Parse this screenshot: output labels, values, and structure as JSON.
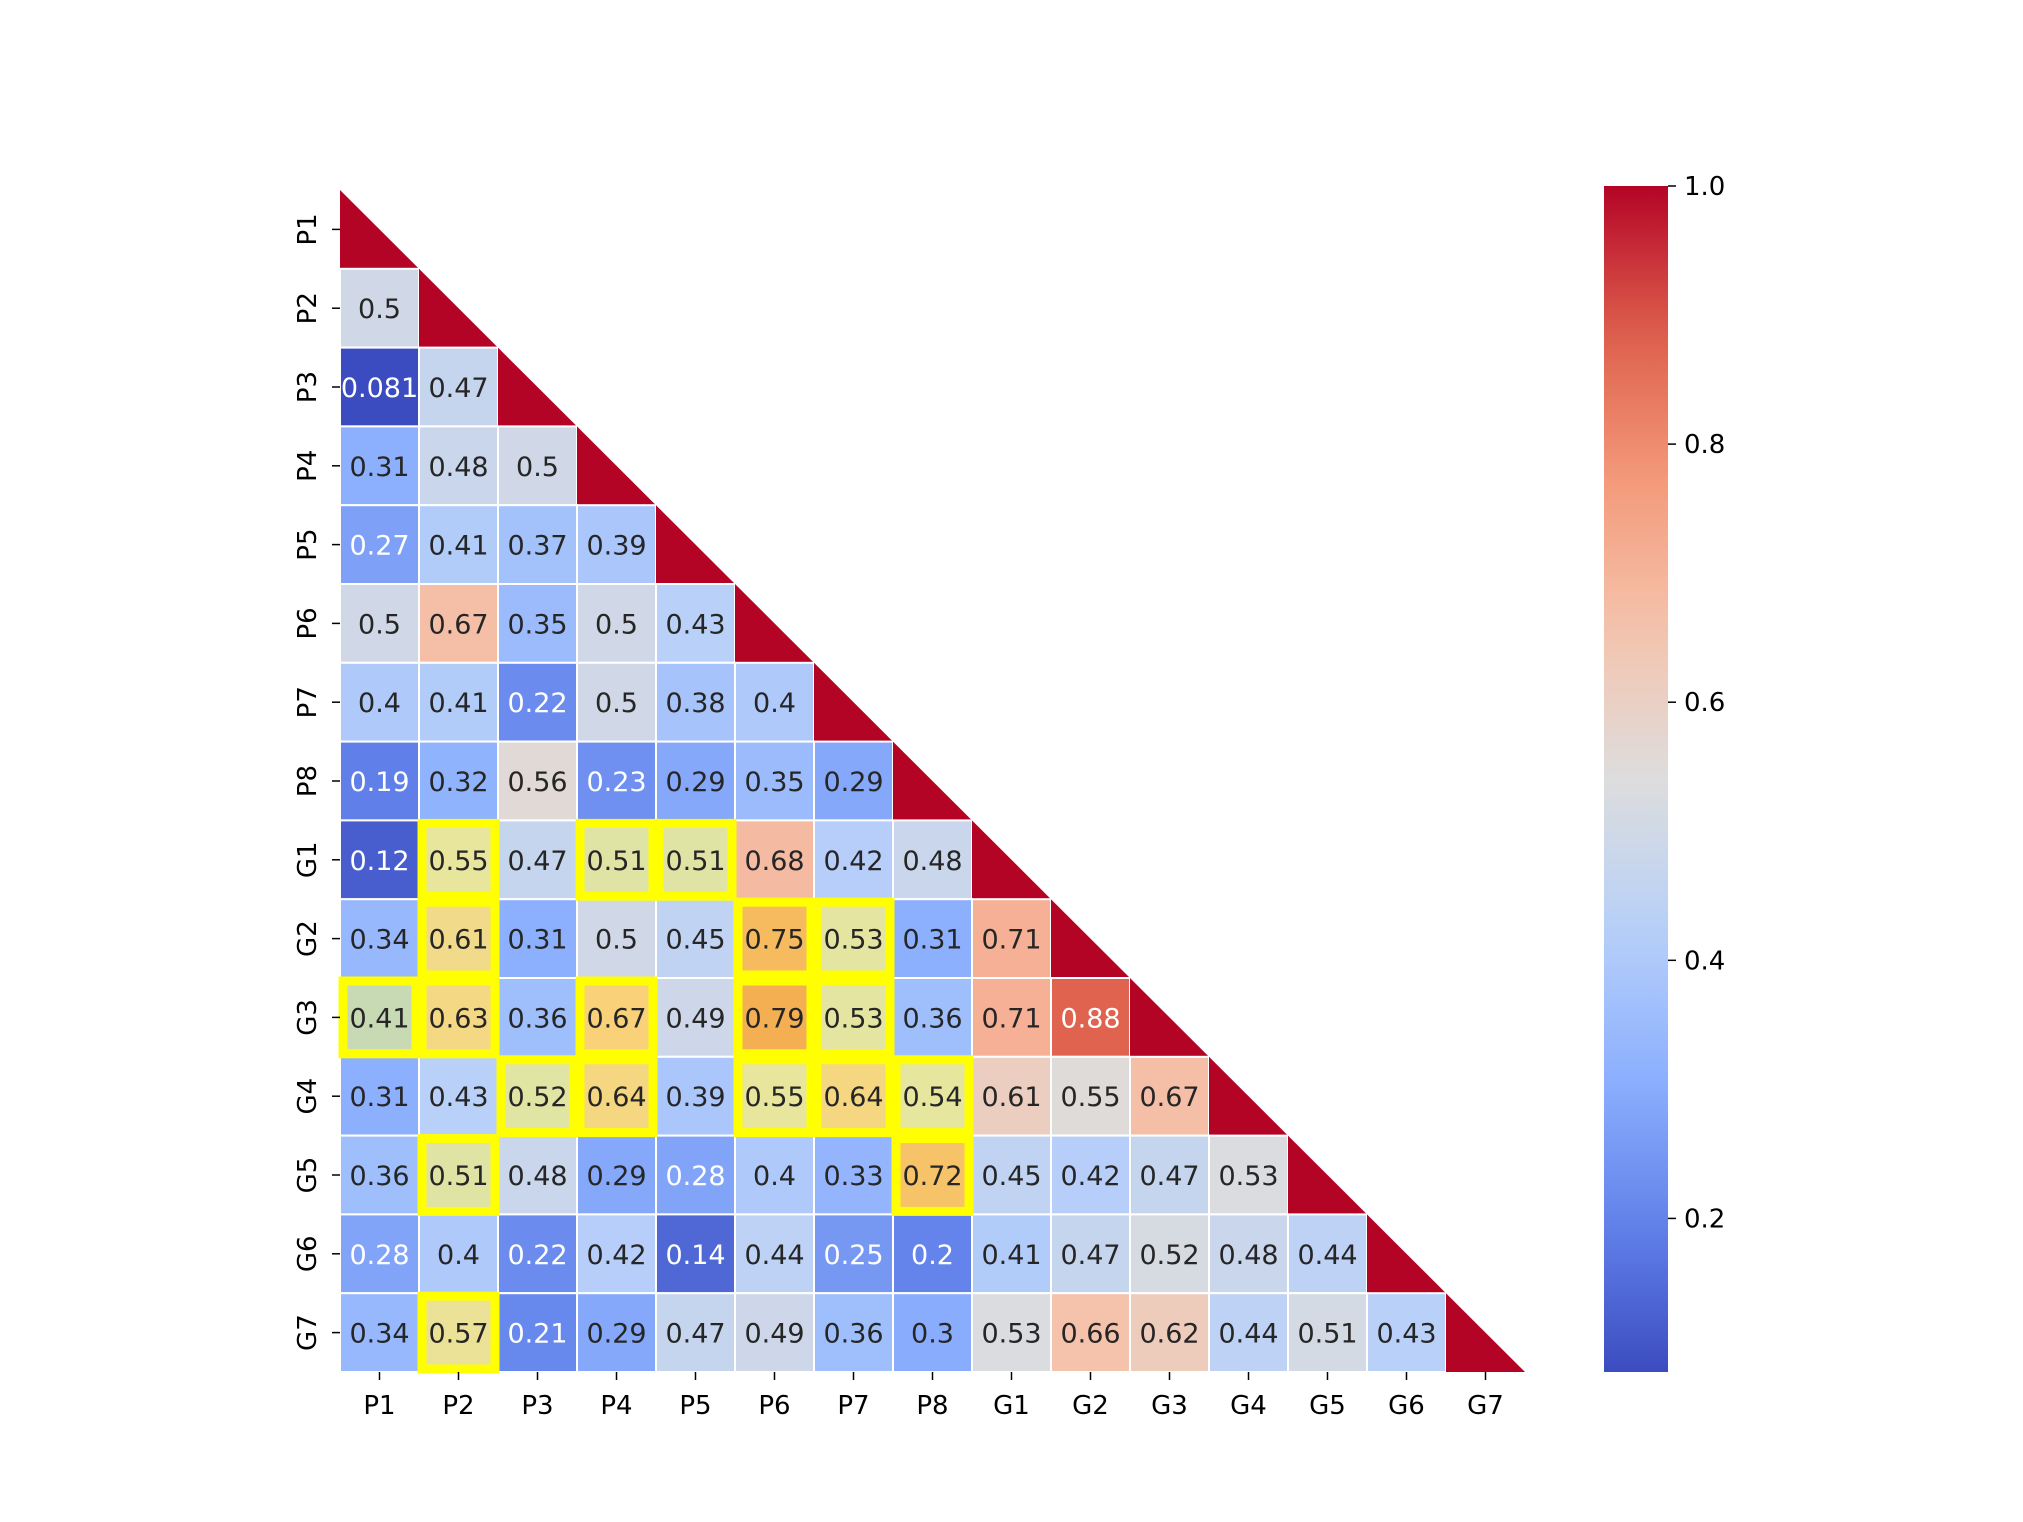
{
  "chart_data": {
    "type": "heatmap",
    "title": "",
    "xlabel": "",
    "ylabel": "",
    "labels": [
      "P1",
      "P2",
      "P3",
      "P4",
      "P5",
      "P6",
      "P7",
      "P8",
      "G1",
      "G2",
      "G3",
      "G4",
      "G5",
      "G6",
      "G7"
    ],
    "matrix_lower": [
      [],
      [
        0.5
      ],
      [
        0.081,
        0.47
      ],
      [
        0.31,
        0.48,
        0.5
      ],
      [
        0.27,
        0.41,
        0.37,
        0.39
      ],
      [
        0.5,
        0.67,
        0.35,
        0.5,
        0.43
      ],
      [
        0.4,
        0.41,
        0.22,
        0.5,
        0.38,
        0.4
      ],
      [
        0.19,
        0.32,
        0.56,
        0.23,
        0.29,
        0.35,
        0.29
      ],
      [
        0.12,
        0.55,
        0.47,
        0.51,
        0.51,
        0.68,
        0.42,
        0.48
      ],
      [
        0.34,
        0.61,
        0.31,
        0.5,
        0.45,
        0.75,
        0.53,
        0.31,
        0.71
      ],
      [
        0.41,
        0.63,
        0.36,
        0.67,
        0.49,
        0.79,
        0.53,
        0.36,
        0.71,
        0.88
      ],
      [
        0.31,
        0.43,
        0.52,
        0.64,
        0.39,
        0.55,
        0.64,
        0.54,
        0.61,
        0.55,
        0.67
      ],
      [
        0.36,
        0.51,
        0.48,
        0.29,
        0.28,
        0.4,
        0.33,
        0.72,
        0.45,
        0.42,
        0.47,
        0.53
      ],
      [
        0.28,
        0.4,
        0.22,
        0.42,
        0.14,
        0.44,
        0.25,
        0.2,
        0.41,
        0.47,
        0.52,
        0.48,
        0.44
      ],
      [
        0.34,
        0.57,
        0.21,
        0.29,
        0.47,
        0.49,
        0.36,
        0.3,
        0.53,
        0.66,
        0.62,
        0.44,
        0.51,
        0.43
      ]
    ],
    "diagonal_value": 1,
    "highlighted_cells": [
      [
        "G1",
        "P2"
      ],
      [
        "G1",
        "P4"
      ],
      [
        "G1",
        "P5"
      ],
      [
        "G2",
        "P2"
      ],
      [
        "G2",
        "P6"
      ],
      [
        "G2",
        "P7"
      ],
      [
        "G3",
        "P1"
      ],
      [
        "G3",
        "P2"
      ],
      [
        "G3",
        "P4"
      ],
      [
        "G3",
        "P6"
      ],
      [
        "G3",
        "P7"
      ],
      [
        "G4",
        "P3"
      ],
      [
        "G4",
        "P4"
      ],
      [
        "G4",
        "P6"
      ],
      [
        "G4",
        "P7"
      ],
      [
        "G4",
        "P8"
      ],
      [
        "G5",
        "P2"
      ],
      [
        "G5",
        "P8"
      ],
      [
        "G7",
        "P2"
      ]
    ],
    "colormap": "coolwarm",
    "colorbar": {
      "vmin": 0.081,
      "vmax": 1.0,
      "ticks": [
        0.2,
        0.4,
        0.6,
        0.8,
        1.0
      ],
      "tick_labels": [
        "0.2",
        "0.4",
        "0.6",
        "0.8",
        "1.0"
      ]
    },
    "colors": {
      "highlight": "#ffff00",
      "cell_border": "#ffffff",
      "text_dark": "#262626",
      "text_light": "#ffffff"
    }
  }
}
